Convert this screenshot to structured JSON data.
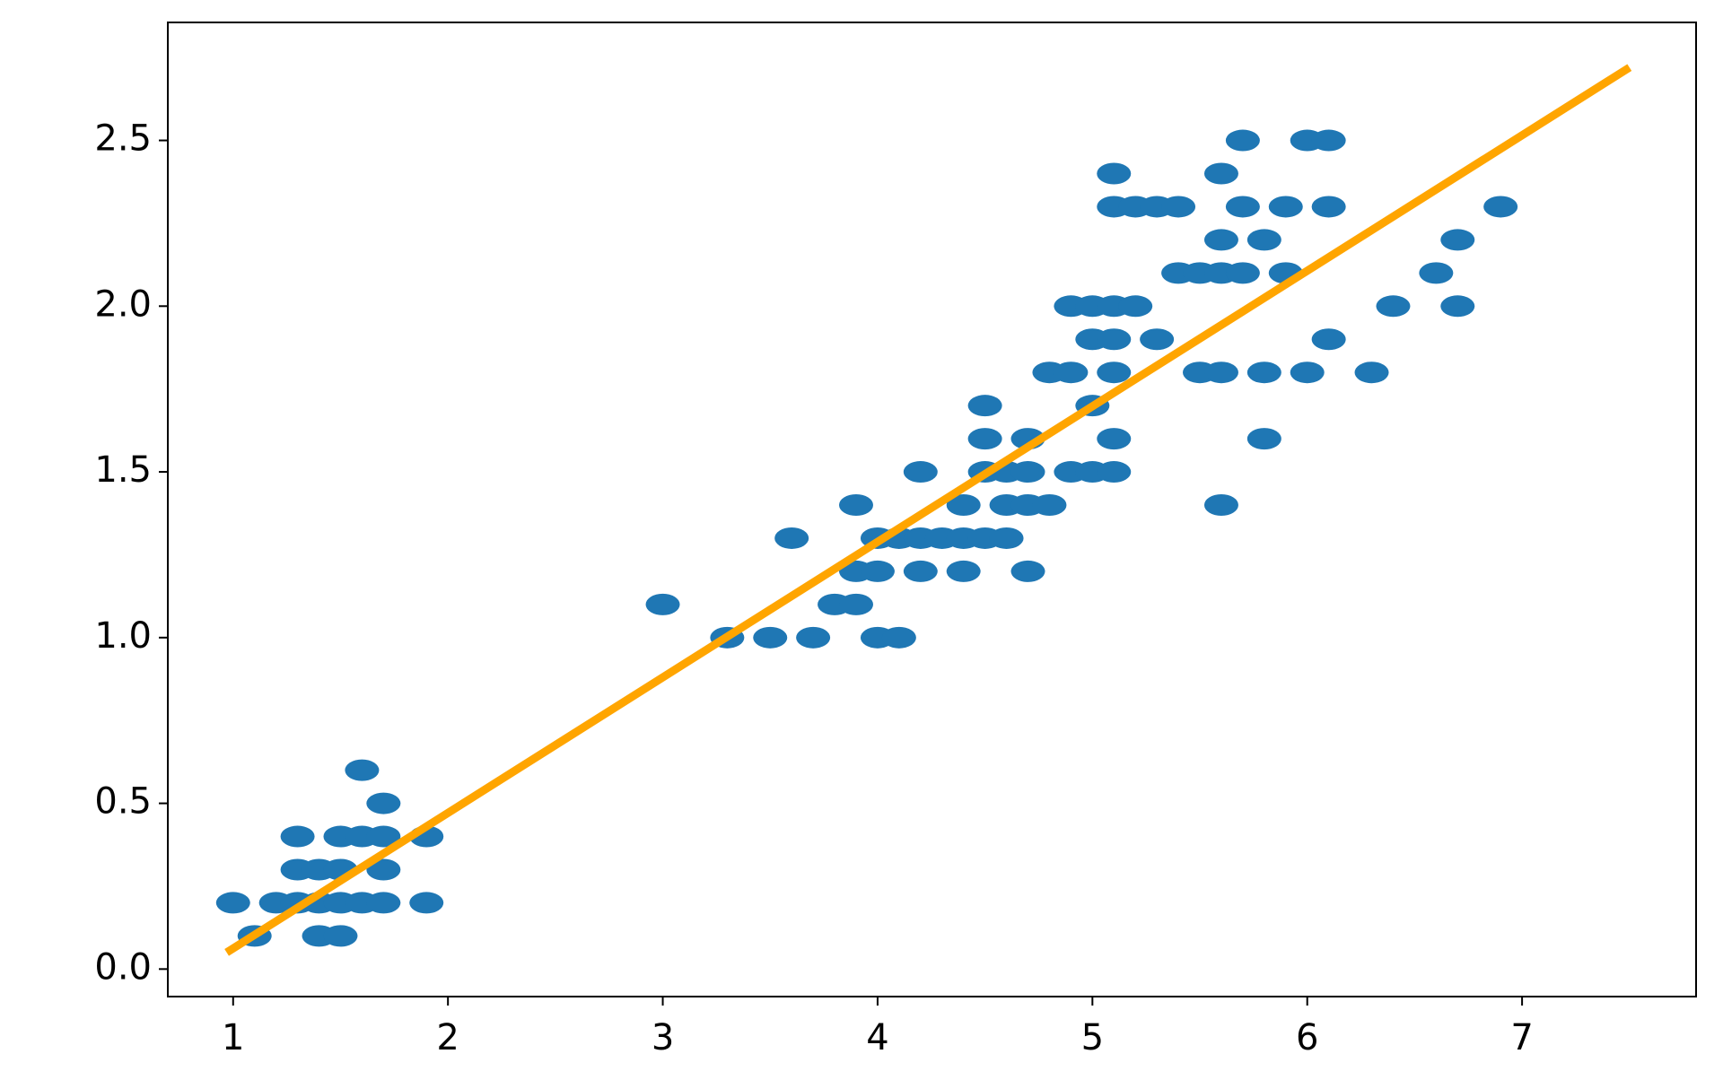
{
  "chart_data": {
    "type": "scatter",
    "series": [
      {
        "type": "scatter",
        "color": "#1f77b4",
        "x": [
          1.0,
          1.2,
          1.3,
          1.4,
          1.5,
          1.6,
          1.7,
          1.9,
          1.1,
          1.4,
          1.5,
          1.3,
          1.4,
          1.5,
          1.7,
          1.3,
          1.5,
          1.6,
          1.7,
          1.9,
          1.7,
          1.6,
          3.0,
          3.8,
          3.9,
          3.3,
          3.5,
          3.7,
          4.0,
          4.1,
          3.9,
          4.0,
          4.2,
          4.4,
          4.7,
          3.6,
          4.0,
          4.1,
          4.2,
          4.3,
          4.4,
          4.5,
          4.6,
          3.9,
          4.4,
          4.6,
          4.7,
          4.8,
          5.6,
          4.2,
          4.5,
          4.6,
          4.7,
          4.9,
          5.0,
          5.1,
          4.5,
          4.7,
          5.1,
          5.8,
          4.5,
          5.0,
          4.8,
          4.9,
          5.1,
          5.5,
          5.6,
          5.8,
          6.0,
          6.3,
          5.0,
          5.1,
          5.3,
          6.1,
          4.9,
          5.0,
          5.1,
          5.2,
          6.4,
          6.7,
          5.4,
          5.5,
          5.6,
          5.7,
          5.9,
          6.6,
          5.6,
          5.8,
          6.7,
          5.1,
          5.2,
          5.3,
          5.4,
          5.7,
          5.9,
          6.1,
          6.9,
          5.1,
          5.6,
          5.7,
          6.0,
          6.1
        ],
        "y": [
          0.2,
          0.2,
          0.2,
          0.2,
          0.2,
          0.2,
          0.2,
          0.2,
          0.1,
          0.1,
          0.1,
          0.3,
          0.3,
          0.3,
          0.3,
          0.4,
          0.4,
          0.4,
          0.4,
          0.4,
          0.5,
          0.6,
          1.1,
          1.1,
          1.1,
          1.0,
          1.0,
          1.0,
          1.0,
          1.0,
          1.2,
          1.2,
          1.2,
          1.2,
          1.2,
          1.3,
          1.3,
          1.3,
          1.3,
          1.3,
          1.3,
          1.3,
          1.3,
          1.4,
          1.4,
          1.4,
          1.4,
          1.4,
          1.4,
          1.5,
          1.5,
          1.5,
          1.5,
          1.5,
          1.5,
          1.5,
          1.6,
          1.6,
          1.6,
          1.6,
          1.7,
          1.7,
          1.8,
          1.8,
          1.8,
          1.8,
          1.8,
          1.8,
          1.8,
          1.8,
          1.9,
          1.9,
          1.9,
          1.9,
          2.0,
          2.0,
          2.0,
          2.0,
          2.0,
          2.0,
          2.1,
          2.1,
          2.1,
          2.1,
          2.1,
          2.1,
          2.2,
          2.2,
          2.2,
          2.3,
          2.3,
          2.3,
          2.3,
          2.3,
          2.3,
          2.3,
          2.3,
          2.4,
          2.4,
          2.5,
          2.5,
          2.5
        ]
      },
      {
        "type": "line",
        "color": "#ffa500",
        "x": [
          0.97,
          7.5
        ],
        "y": [
          0.05,
          2.72
        ]
      }
    ],
    "xlim": [
      0.696,
      7.81
    ],
    "ylim": [
      -0.083,
      2.856
    ],
    "xticks": [
      1,
      2,
      3,
      4,
      5,
      6,
      7
    ],
    "yticks": [
      {
        "value": 0,
        "label": "0.0"
      },
      0.5,
      {
        "value": 1,
        "label": "1.0"
      },
      1.5,
      {
        "value": 2,
        "label": "2.0"
      },
      2.5
    ]
  }
}
